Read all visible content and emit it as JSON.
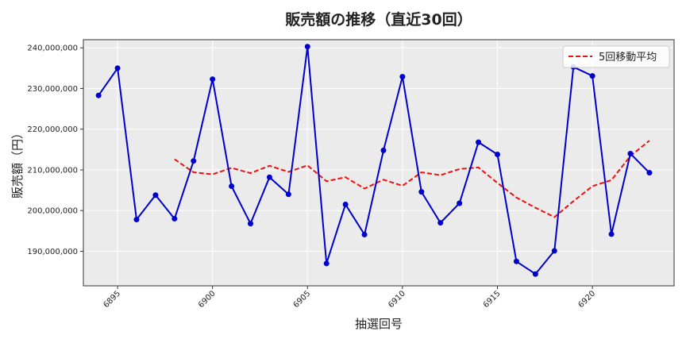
{
  "chart_data": {
    "type": "line",
    "title": "販売額の推移（直近30回）",
    "xlabel": "抽選回号",
    "ylabel": "販売額（円）",
    "x": [
      6894,
      6895,
      6896,
      6897,
      6898,
      6899,
      6900,
      6901,
      6902,
      6903,
      6904,
      6905,
      6906,
      6907,
      6908,
      6909,
      6910,
      6911,
      6912,
      6913,
      6914,
      6915,
      6916,
      6917,
      6918,
      6919,
      6920,
      6921,
      6922,
      6923
    ],
    "xticks": [
      6895,
      6900,
      6905,
      6910,
      6915,
      6920
    ],
    "xlim": [
      6893.2,
      6924.3
    ],
    "ylim": [
      181500000,
      242000000
    ],
    "yticks": [
      190000000,
      200000000,
      210000000,
      220000000,
      230000000,
      240000000
    ],
    "ytick_labels": [
      "190,000,000",
      "200,000,000",
      "210,000,000",
      "220,000,000",
      "230,000,000",
      "240,000,000"
    ],
    "grid": true,
    "legend_position": "top-right",
    "series": [
      {
        "color": "#0000cc",
        "style": "solid-markers",
        "values": [
          228300000,
          235000000,
          197800000,
          203800000,
          198000000,
          212200000,
          232300000,
          206000000,
          196800000,
          208200000,
          204000000,
          240300000,
          187000000,
          201500000,
          194100000,
          214800000,
          232900000,
          204600000,
          197000000,
          201800000,
          216800000,
          213800000,
          187500000,
          184400000,
          190100000,
          235300000,
          233100000,
          194200000,
          214000000,
          209300000
        ]
      },
      {
        "name": "5回移動平均",
        "color": "#ee1111",
        "style": "dashed",
        "values": [
          null,
          null,
          null,
          null,
          212600000,
          209400000,
          208900000,
          210500000,
          209200000,
          211000000,
          209500000,
          211100000,
          207200000,
          208200000,
          205400000,
          207600000,
          206100000,
          209400000,
          208700000,
          210200000,
          210600000,
          206800000,
          203200000,
          200700000,
          198400000,
          202300000,
          206000000,
          207500000,
          213400000,
          217200000
        ]
      }
    ]
  }
}
